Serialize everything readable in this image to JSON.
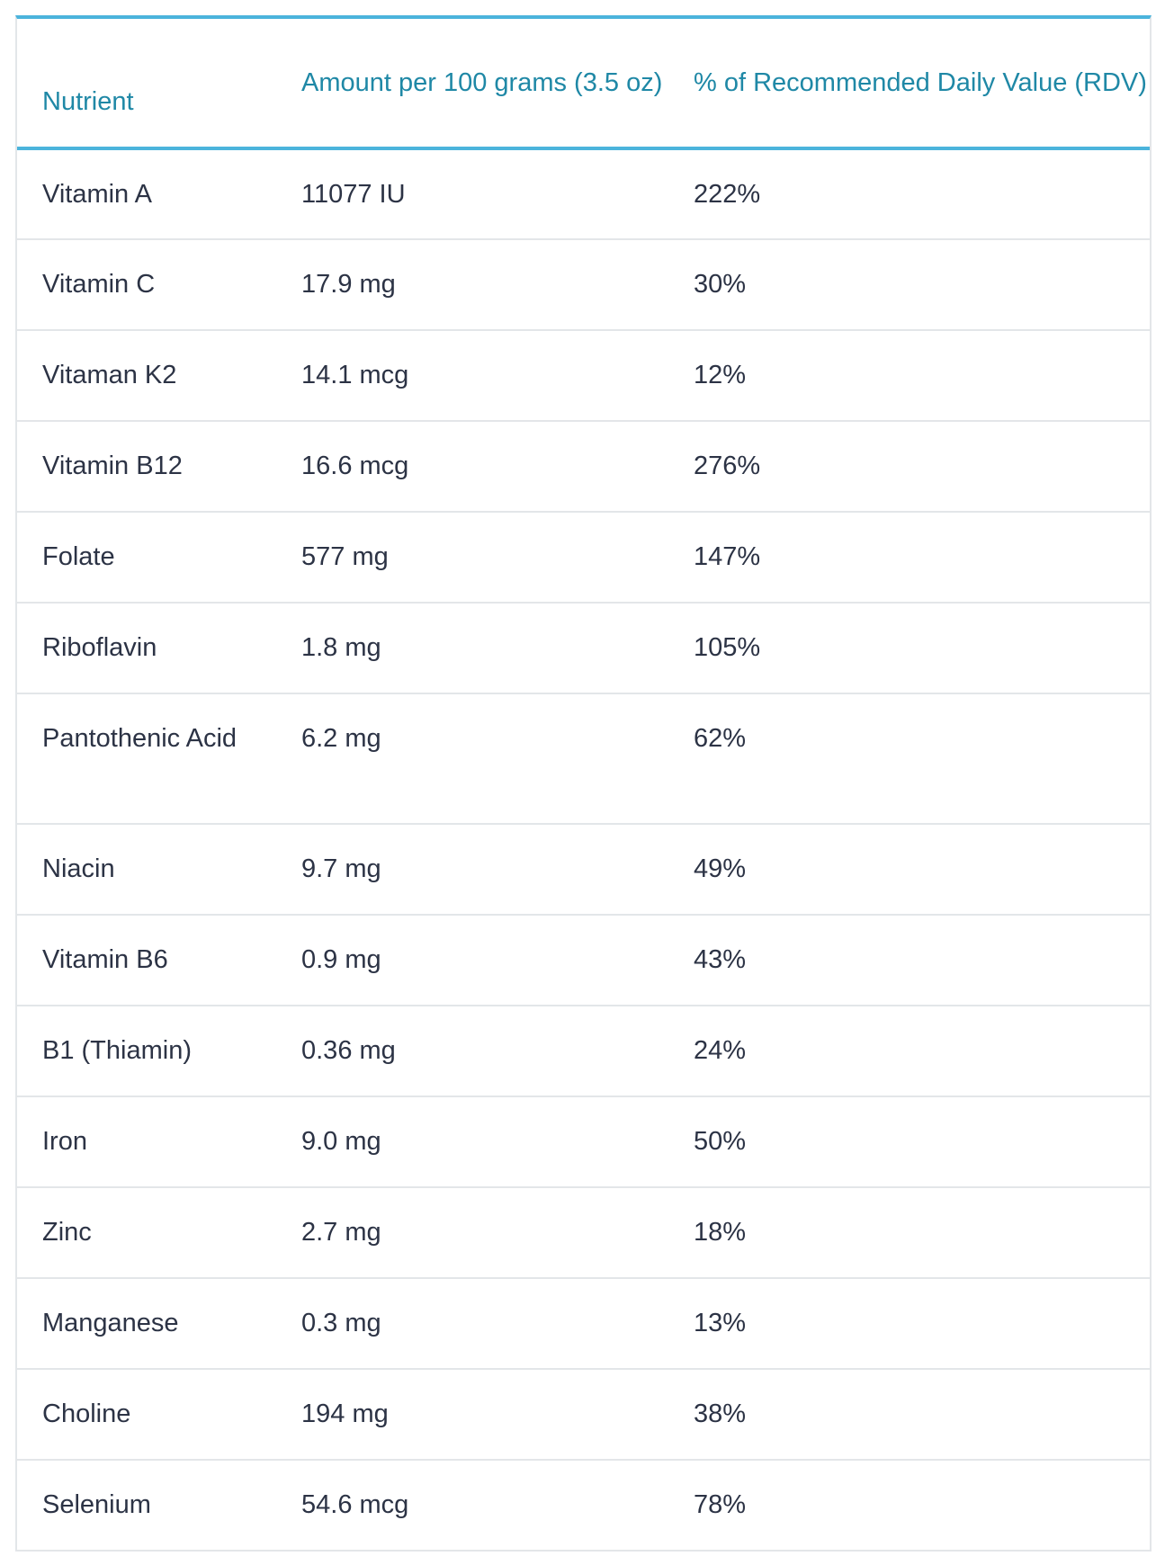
{
  "table": {
    "headers": {
      "nutrient": "Nutrient",
      "amount": "Amount per 100 grams (3.5 oz)",
      "rdv": "% of Recommended Daily Value (RDV)"
    },
    "rows": [
      {
        "nutrient": "Vitamin A",
        "amount": "11077 IU",
        "rdv": "222%"
      },
      {
        "nutrient": "Vitamin C",
        "amount": "17.9 mg",
        "rdv": "30%"
      },
      {
        "nutrient": "Vitaman K2",
        "amount": "14.1 mcg",
        "rdv": "12%"
      },
      {
        "nutrient": "Vitamin B12",
        "amount": "16.6 mcg",
        "rdv": "276%"
      },
      {
        "nutrient": "Folate",
        "amount": "577 mg",
        "rdv": "147%"
      },
      {
        "nutrient": "Riboflavin",
        "amount": "1.8 mg",
        "rdv": "105%"
      },
      {
        "nutrient": "Pantothenic Acid",
        "amount": "6.2 mg",
        "rdv": "62%"
      },
      {
        "nutrient": "Niacin",
        "amount": "9.7 mg",
        "rdv": "49%"
      },
      {
        "nutrient": "Vitamin B6",
        "amount": "0.9 mg",
        "rdv": "43%"
      },
      {
        "nutrient": "B1 (Thiamin)",
        "amount": "0.36 mg",
        "rdv": "24%"
      },
      {
        "nutrient": "Iron",
        "amount": "9.0 mg",
        "rdv": "50%"
      },
      {
        "nutrient": "Zinc",
        "amount": "2.7 mg",
        "rdv": "18%"
      },
      {
        "nutrient": "Manganese",
        "amount": "0.3 mg",
        "rdv": "13%"
      },
      {
        "nutrient": "Choline",
        "amount": "194 mg",
        "rdv": "38%"
      },
      {
        "nutrient": "Selenium",
        "amount": "54.6 mcg",
        "rdv": "78%"
      }
    ]
  },
  "colors": {
    "header_text": "#1f88a6",
    "accent_border": "#4bb4dc",
    "body_text": "#2c3345",
    "row_divider": "#e3e6e9"
  }
}
